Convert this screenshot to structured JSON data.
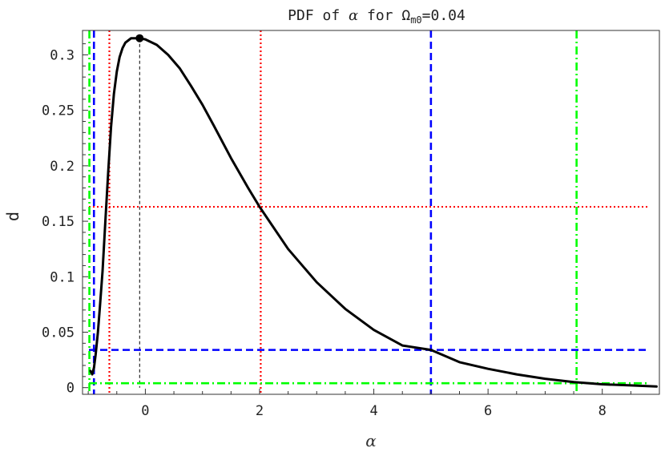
{
  "chart_data": {
    "type": "line",
    "title_prefix": "PDF of ",
    "title_symbol": "α",
    "title_mid": " for Ω",
    "title_sub": "m0",
    "title_suffix": "=0.04",
    "xlabel": "α",
    "ylabel": "p",
    "xlim": [
      -1.1,
      9.0
    ],
    "ylim": [
      -0.006,
      0.322
    ],
    "grid": false,
    "x_ticks": [
      0,
      2,
      4,
      6,
      8
    ],
    "x_tick_labels": [
      "0",
      "2",
      "4",
      "6",
      "8"
    ],
    "y_ticks": [
      0,
      0.05,
      0.1,
      0.15,
      0.2,
      0.25,
      0.3
    ],
    "y_tick_labels": [
      "0",
      "0.05",
      "0.1",
      "0.15",
      "0.2",
      "0.25",
      "0.3"
    ],
    "series": [
      {
        "color": "#000000",
        "style": "solid",
        "x": [
          -0.96,
          -0.93,
          -0.9,
          -0.87,
          -0.83,
          -0.8,
          -0.75,
          -0.7,
          -0.65,
          -0.6,
          -0.55,
          -0.5,
          -0.45,
          -0.4,
          -0.35,
          -0.3,
          -0.25,
          -0.2,
          -0.15,
          -0.1,
          0.0,
          0.2,
          0.4,
          0.6,
          0.8,
          1.0,
          1.2,
          1.5,
          1.8,
          2.0,
          2.5,
          3.0,
          3.5,
          4.0,
          4.5,
          5.0,
          5.5,
          6.0,
          6.5,
          7.0,
          7.5,
          8.0,
          8.5,
          8.95
        ],
        "y": [
          0.015,
          0.012,
          0.018,
          0.03,
          0.05,
          0.07,
          0.105,
          0.15,
          0.195,
          0.235,
          0.265,
          0.285,
          0.298,
          0.306,
          0.311,
          0.313,
          0.315,
          0.315,
          0.315,
          0.315,
          0.314,
          0.309,
          0.3,
          0.288,
          0.272,
          0.255,
          0.236,
          0.207,
          0.18,
          0.163,
          0.125,
          0.095,
          0.071,
          0.052,
          0.038,
          0.034,
          0.023,
          0.017,
          0.012,
          0.008,
          0.005,
          0.003,
          0.002,
          0.001
        ]
      }
    ],
    "peak_marker": {
      "x": -0.1,
      "y": 0.315
    },
    "reference_lines": [
      {
        "color": "#000000",
        "style": "thin-dashed",
        "orientation": "vertical",
        "x": -0.1,
        "from": 0,
        "to": 0.315
      },
      {
        "color": "#ff0000",
        "style": "dotted",
        "orientation": "horizontal",
        "y": 0.163
      },
      {
        "color": "#ff0000",
        "style": "dotted",
        "orientation": "vertical",
        "x": -0.63
      },
      {
        "color": "#ff0000",
        "style": "dotted",
        "orientation": "vertical",
        "x": 2.02
      },
      {
        "color": "#0000ff",
        "style": "dashed",
        "orientation": "horizontal",
        "y": 0.034
      },
      {
        "color": "#0000ff",
        "style": "dashed",
        "orientation": "vertical",
        "x": -0.9
      },
      {
        "color": "#0000ff",
        "style": "dashed",
        "orientation": "vertical",
        "x": 5.0
      },
      {
        "color": "#00ff00",
        "style": "dash-dot",
        "orientation": "horizontal",
        "y": 0.004
      },
      {
        "color": "#00ff00",
        "style": "dash-dot",
        "orientation": "vertical",
        "x": -0.98
      },
      {
        "color": "#00ff00",
        "style": "dash-dot",
        "orientation": "vertical",
        "x": 7.55
      }
    ]
  }
}
